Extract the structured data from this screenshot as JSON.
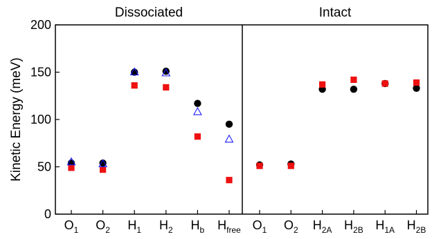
{
  "chart_data": [
    {
      "type": "scatter",
      "title": "Dissociated",
      "ylabel": "Kinetic Energy (meV)",
      "ylim": [
        0,
        200
      ],
      "yticks": [
        0,
        50,
        100,
        150,
        200
      ],
      "categories": [
        {
          "main": "O",
          "sub": "1"
        },
        {
          "main": "O",
          "sub": "2"
        },
        {
          "main": "H",
          "sub": "1"
        },
        {
          "main": "H",
          "sub": "2"
        },
        {
          "main": "H",
          "sub": "b"
        },
        {
          "main": "H",
          "sub": "free"
        }
      ],
      "series": [
        {
          "marker": "circle",
          "color": "#000000",
          "values": [
            54,
            54,
            150,
            151,
            117,
            95
          ]
        },
        {
          "marker": "square",
          "color": "#ee1111",
          "values": [
            49,
            47,
            136,
            134,
            82,
            36
          ]
        },
        {
          "marker": "triangle-open",
          "color": "#1a1aff",
          "values": [
            55,
            53,
            150,
            149,
            108,
            79
          ]
        }
      ],
      "grid": false
    },
    {
      "type": "scatter",
      "title": "Intact",
      "ylim": [
        0,
        200
      ],
      "categories": [
        {
          "main": "O",
          "sub": "1"
        },
        {
          "main": "O",
          "sub": "2"
        },
        {
          "main": "H",
          "sub": "2A"
        },
        {
          "main": "H",
          "sub": "2B"
        },
        {
          "main": "H",
          "sub": "1A"
        },
        {
          "main": "H",
          "sub": "2B"
        }
      ],
      "series": [
        {
          "marker": "circle",
          "color": "#000000",
          "values": [
            52,
            53,
            132,
            132,
            138,
            133
          ]
        },
        {
          "marker": "square",
          "color": "#ee1111",
          "values": [
            51,
            51,
            137,
            142,
            138,
            139
          ]
        }
      ],
      "grid": false
    }
  ]
}
